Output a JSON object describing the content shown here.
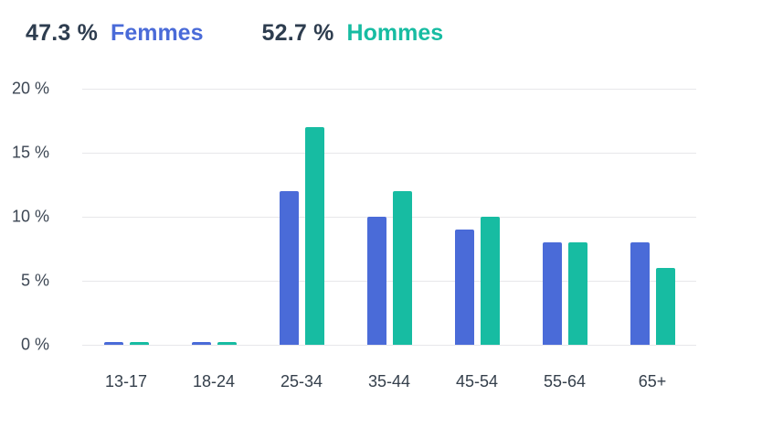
{
  "legend": {
    "femmes": {
      "percent": "47.3 %",
      "label": "Femmes",
      "color": "#4a6bd8"
    },
    "hommes": {
      "percent": "52.7 %",
      "label": "Hommes",
      "color": "#17bca2"
    }
  },
  "chart_data": {
    "type": "bar",
    "title": "",
    "xlabel": "",
    "ylabel": "",
    "categories": [
      "13-17",
      "18-24",
      "25-34",
      "35-44",
      "45-54",
      "55-64",
      "65+"
    ],
    "series": [
      {
        "name": "Femmes",
        "color": "#4a6bd8",
        "values": [
          0.2,
          0.2,
          12,
          10,
          9,
          8,
          8
        ]
      },
      {
        "name": "Hommes",
        "color": "#17bca2",
        "values": [
          0.2,
          0.2,
          17,
          12,
          10,
          8,
          6
        ]
      }
    ],
    "ylim": [
      0,
      20
    ],
    "yticks": [
      "20 %",
      "15 %",
      "10 %",
      "5 %",
      "0 %"
    ],
    "grid": true,
    "legend_position": "top-left"
  }
}
